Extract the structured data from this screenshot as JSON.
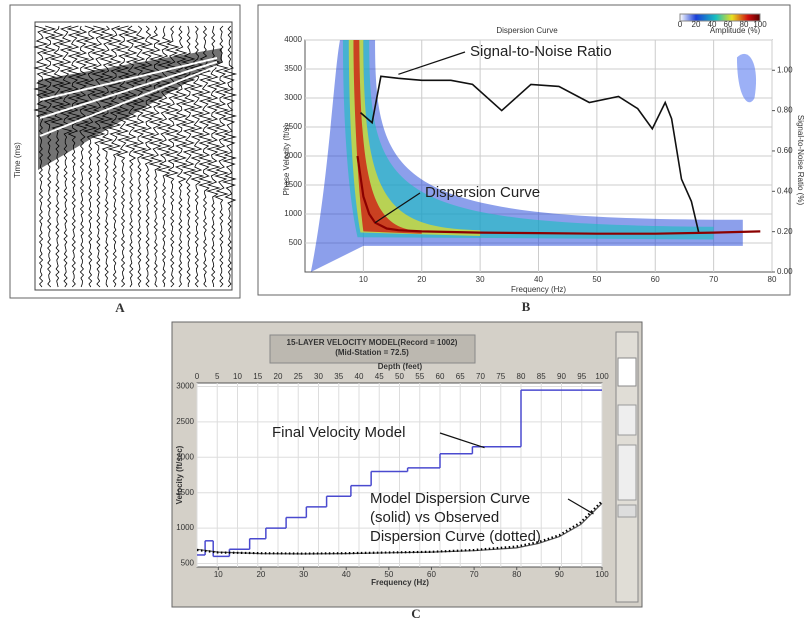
{
  "chart_data": [
    {
      "type": "seismogram",
      "label": "A",
      "ylabel": "Time (ms)"
    },
    {
      "type": "dispersion_image",
      "label": "B",
      "title": "Dispersion Curve",
      "xlabel": "Frequency (Hz)",
      "ylabel": "Phase Velocity (ft/s)",
      "y2label": "Signal-to-Noise Ratio (%)",
      "xlim": [
        0,
        80
      ],
      "xticks": [
        10,
        20,
        30,
        40,
        50,
        60,
        70,
        80
      ],
      "ylim": [
        0,
        4000
      ],
      "yticks": [
        500,
        1000,
        1500,
        2000,
        2500,
        3000,
        3500,
        4000
      ],
      "y2lim": [
        0,
        1.15
      ],
      "y2ticks": [
        {
          "value": 0,
          "label": "0.00"
        },
        {
          "value": 0.2,
          "label": "0.20"
        },
        {
          "value": 0.4,
          "label": "0.40"
        },
        {
          "value": 0.6,
          "label": "0.60"
        },
        {
          "value": 0.8,
          "label": "0.80"
        },
        {
          "value": 1,
          "label": "1.00"
        }
      ],
      "colorbar": {
        "label": "Amplitude (%)",
        "lim": [
          0,
          100
        ],
        "ticks": [
          0,
          20,
          40,
          60,
          80,
          100
        ]
      },
      "series": [
        {
          "name": "Signal-to-Noise Ratio",
          "color": "#111111",
          "axis": "y2",
          "x": [
            9.5,
            11.5,
            13,
            16,
            20,
            25,
            28.7,
            33.7,
            38.7,
            43.5,
            48.7,
            53.7,
            57,
            59.5,
            61.7,
            62.8,
            64.5,
            66.2,
            67.5
          ],
          "values": [
            0.79,
            0.74,
            0.97,
            0.96,
            0.95,
            0.95,
            0.93,
            0.8,
            0.93,
            0.92,
            0.84,
            0.87,
            0.81,
            0.71,
            0.84,
            0.76,
            0.46,
            0.35,
            0.19
          ]
        },
        {
          "name": "Dispersion Curve",
          "color": "#8b0000",
          "x": [
            9,
            10,
            11,
            12,
            14,
            16,
            20,
            30,
            40,
            50,
            60,
            70,
            78
          ],
          "values": [
            2000,
            1300,
            1000,
            850,
            750,
            720,
            700,
            680,
            670,
            660,
            660,
            680,
            700
          ]
        }
      ]
    },
    {
      "type": "velocity_model",
      "label": "C",
      "title": [
        "15-LAYER VELOCITY MODEL(Record = 1002)",
        "(Mid-Station = 72.5)"
      ],
      "xlabel": "Frequency (Hz)",
      "x2label": "Depth (feet)",
      "ylabel": "Velocity (ft/sec)",
      "xlim": [
        5,
        100
      ],
      "xticks": [
        10,
        20,
        30,
        40,
        50,
        60,
        70,
        80,
        90,
        100
      ],
      "x2lim": [
        0,
        100
      ],
      "x2ticks": [
        0,
        5,
        10,
        15,
        20,
        25,
        30,
        35,
        40,
        45,
        50,
        55,
        60,
        65,
        70,
        75,
        80,
        85,
        90,
        95,
        100
      ],
      "ylim": [
        450,
        3050
      ],
      "yticks": [
        500,
        1000,
        1500,
        2000,
        2500,
        3000
      ],
      "grid": true,
      "model": {
        "name": "Final Velocity Model",
        "color": "#4a4acf",
        "depth": [
          0,
          2,
          4,
          8,
          13,
          17,
          22,
          27,
          32,
          38,
          43,
          52,
          60,
          68,
          80
        ],
        "values": [
          620,
          820,
          600,
          700,
          850,
          1000,
          1150,
          1300,
          1450,
          1600,
          1800,
          1850,
          2050,
          2150,
          2950
        ]
      },
      "annotation": [
        "Model Dispersion Curve",
        "(solid) vs Observed",
        "Dispersion Curve (dotted)"
      ],
      "series": [
        {
          "color": "#555555",
          "style": "solid",
          "x": [
            5,
            10,
            20,
            30,
            40,
            50,
            60,
            70,
            80,
            85,
            90,
            95,
            100
          ],
          "values": [
            700,
            660,
            640,
            635,
            640,
            650,
            660,
            680,
            720,
            780,
            880,
            1050,
            1350
          ]
        },
        {
          "color": "#000000",
          "style": "dotted",
          "x": [
            5,
            10,
            20,
            30,
            40,
            50,
            60,
            70,
            80,
            85,
            90,
            95,
            100
          ],
          "values": [
            690,
            655,
            645,
            640,
            645,
            655,
            665,
            690,
            740,
            800,
            900,
            1080,
            1380
          ]
        }
      ]
    }
  ]
}
